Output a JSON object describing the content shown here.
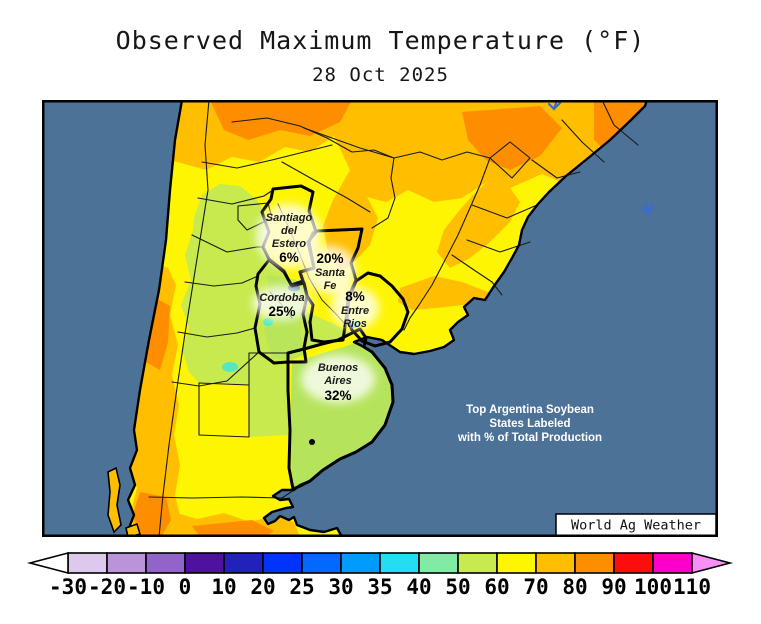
{
  "title": "Observed Maximum Temperature (°F)",
  "date": "28 Oct 2025",
  "map": {
    "note": "Top Argentina Soybean States Labeled with % of Total Production",
    "note_lines": [
      "Top Argentina Soybean",
      "States Labeled",
      "with % of Total Production"
    ],
    "watermark": "World Ag Weather",
    "states": [
      {
        "name": "Santiago del Estero",
        "name_lines": [
          "Santiago",
          "del",
          "Estero"
        ],
        "production_pct": "6%"
      },
      {
        "name": "Santa Fe",
        "name_lines": [
          "Santa",
          "Fe"
        ],
        "production_pct": "20%"
      },
      {
        "name": "Cordoba",
        "name_lines": [
          "Cordoba"
        ],
        "production_pct": "25%"
      },
      {
        "name": "Entre Rios",
        "name_lines": [
          "Entre",
          "Rios"
        ],
        "production_pct": "8%"
      },
      {
        "name": "Buenos Aires",
        "name_lines": [
          "Buenos",
          "Aires"
        ],
        "production_pct": "32%"
      }
    ],
    "colors": {
      "ocean": "#4d7297",
      "land_yellow": "#fdf502",
      "orange": "#ffbe00",
      "orange_dark": "#ff8d00",
      "green": "#c7ea4e",
      "green_light": "#b5e45c",
      "cyan_spot": "#55e8c0",
      "lake": "#5a80a2"
    }
  },
  "scale": {
    "units": "°F",
    "ticks": [
      "-30",
      "-20",
      "-10",
      "0",
      "10",
      "20",
      "25",
      "30",
      "35",
      "40",
      "50",
      "60",
      "70",
      "80",
      "90",
      "100",
      "110"
    ],
    "colors": [
      "#ddc9ee",
      "#bb93d8",
      "#9263c8",
      "#4e11a0",
      "#2121bc",
      "#0034fb",
      "#0169ff",
      "#019bff",
      "#25ddf2",
      "#7feba5",
      "#c7ea4e",
      "#fdf502",
      "#ffbe00",
      "#ff8d00",
      "#fe0d0d",
      "#fb00cb"
    ],
    "underflow_left_color": "#ffffff",
    "overflow_right_color": "#f68ff6"
  }
}
